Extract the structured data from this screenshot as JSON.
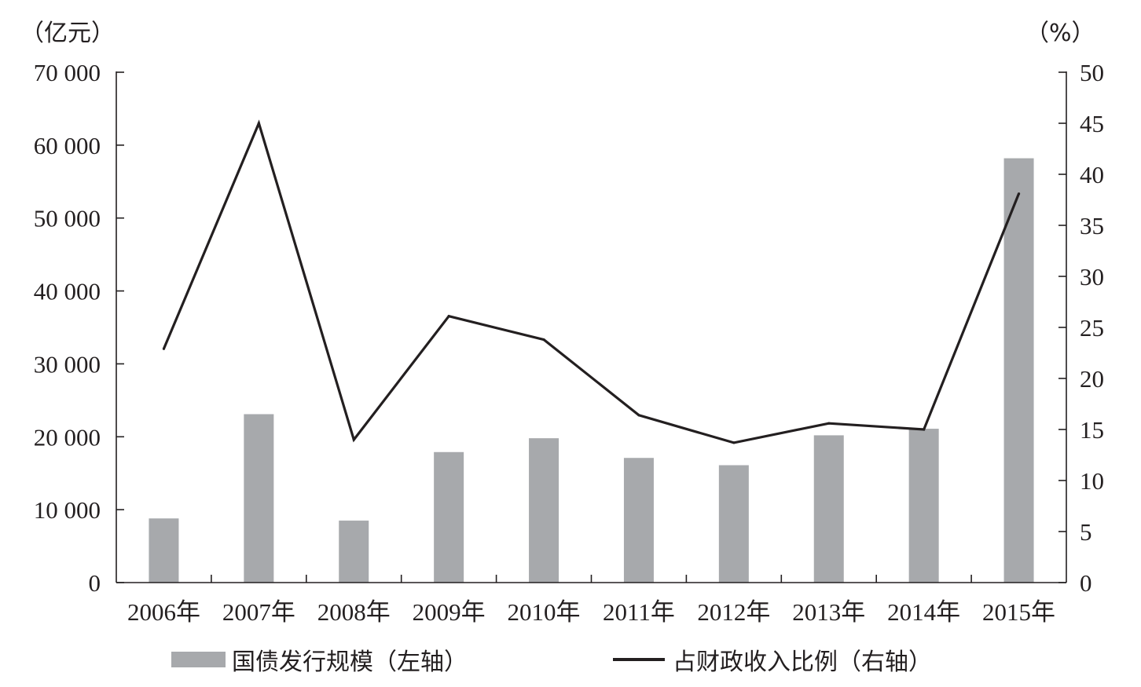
{
  "chart_data": {
    "type": "bar",
    "categories": [
      "2006年",
      "2007年",
      "2008年",
      "2009年",
      "2010年",
      "2011年",
      "2012年",
      "2013年",
      "2014年",
      "2015年"
    ],
    "series": [
      {
        "name": "国债发行规模（左轴）",
        "type": "bar",
        "axis": "left",
        "values": [
          8800,
          23100,
          8500,
          17900,
          19800,
          17100,
          16100,
          20200,
          21100,
          58200
        ]
      },
      {
        "name": "占财政收入比例（右轴）",
        "type": "line",
        "axis": "right",
        "values": [
          22.9,
          45.0,
          14.0,
          26.1,
          23.8,
          16.4,
          13.7,
          15.6,
          15.0,
          38.1
        ]
      }
    ],
    "left_axis": {
      "unit": "（亿元）",
      "ylim": [
        0,
        70000
      ],
      "ticks": [
        0,
        10000,
        20000,
        30000,
        40000,
        50000,
        60000,
        70000
      ],
      "tick_labels": [
        "0",
        "10 000",
        "20 000",
        "30 000",
        "40 000",
        "50 000",
        "60 000",
        "70 000"
      ]
    },
    "right_axis": {
      "unit": "（%）",
      "ylim": [
        0,
        50
      ],
      "ticks": [
        0,
        5,
        10,
        15,
        20,
        25,
        30,
        35,
        40,
        45,
        50
      ],
      "tick_labels": [
        "0",
        "5",
        "10",
        "15",
        "20",
        "25",
        "30",
        "35",
        "40",
        "45",
        "50"
      ]
    },
    "grid": false,
    "legend_position": "bottom",
    "colors": {
      "bar": "#a7a9ac",
      "line": "#231f20",
      "axis": "#231f20"
    }
  },
  "legend": {
    "bar_label": "国债发行规模（左轴）",
    "line_label": "占财政收入比例（右轴）"
  }
}
